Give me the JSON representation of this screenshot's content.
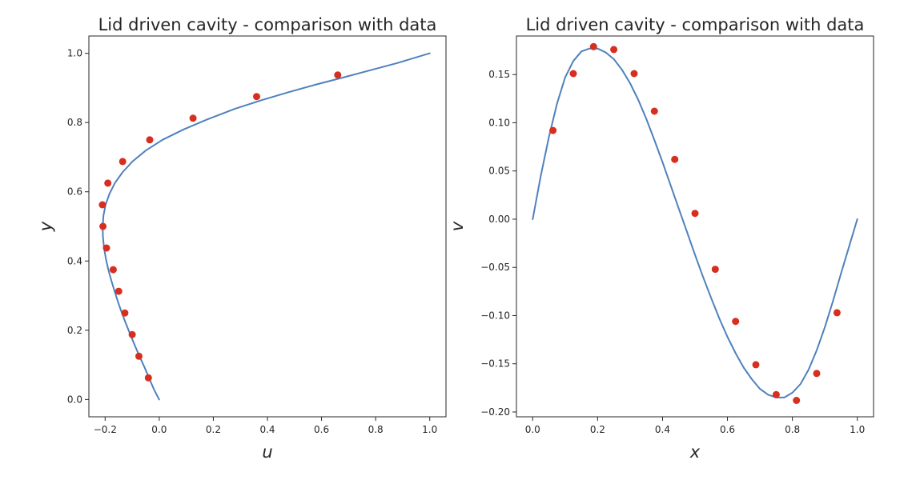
{
  "colors": {
    "line": "#4f81bd",
    "marker": "#d62f1f",
    "axes": "#262626"
  },
  "chart_data": [
    {
      "type": "line",
      "title": "Lid driven cavity - comparison with data",
      "xlabel": "u",
      "ylabel": "y",
      "xlim": [
        -0.26,
        1.06
      ],
      "ylim": [
        -0.05,
        1.05
      ],
      "xticks": [
        -0.2,
        0.0,
        0.2,
        0.4,
        0.6,
        0.8,
        1.0
      ],
      "xtick_labels": [
        "−0.2",
        "0.0",
        "0.2",
        "0.4",
        "0.6",
        "0.8",
        "1.0"
      ],
      "yticks": [
        0.0,
        0.2,
        0.4,
        0.6,
        0.8,
        1.0
      ],
      "ytick_labels": [
        "0.0",
        "0.2",
        "0.4",
        "0.6",
        "0.8",
        "1.0"
      ],
      "grid": false,
      "series": [
        {
          "kind": "line",
          "x": [
            0.0,
            -0.02,
            -0.038,
            -0.055,
            -0.073,
            -0.09,
            -0.107,
            -0.123,
            -0.138,
            -0.152,
            -0.165,
            -0.177,
            -0.188,
            -0.197,
            -0.204,
            -0.208,
            -0.209,
            -0.206,
            -0.198,
            -0.184,
            -0.164,
            -0.136,
            -0.098,
            -0.05,
            0.012,
            0.09,
            0.18,
            0.28,
            0.38,
            0.48,
            0.58,
            0.68,
            0.78,
            0.88,
            1.0
          ],
          "y": [
            0.0,
            0.03,
            0.063,
            0.094,
            0.125,
            0.156,
            0.188,
            0.219,
            0.25,
            0.281,
            0.313,
            0.344,
            0.375,
            0.406,
            0.438,
            0.469,
            0.5,
            0.531,
            0.563,
            0.594,
            0.625,
            0.656,
            0.688,
            0.719,
            0.75,
            0.78,
            0.81,
            0.84,
            0.865,
            0.888,
            0.91,
            0.93,
            0.951,
            0.972,
            1.0
          ]
        },
        {
          "kind": "scatter",
          "x": [
            -0.04,
            -0.075,
            -0.1,
            -0.127,
            -0.15,
            -0.17,
            -0.195,
            -0.208,
            -0.21,
            -0.19,
            -0.135,
            -0.035,
            0.125,
            0.36,
            0.66
          ],
          "y": [
            0.0625,
            0.125,
            0.1875,
            0.25,
            0.3125,
            0.375,
            0.4375,
            0.5,
            0.5625,
            0.625,
            0.6875,
            0.75,
            0.8125,
            0.875,
            0.9375
          ]
        }
      ]
    },
    {
      "type": "line",
      "title": "Lid driven cavity - comparison with data",
      "xlabel": "x",
      "ylabel": "v",
      "xlim": [
        -0.05,
        1.05
      ],
      "ylim": [
        -0.205,
        0.19
      ],
      "xticks": [
        0.0,
        0.2,
        0.4,
        0.6,
        0.8,
        1.0
      ],
      "xtick_labels": [
        "0.0",
        "0.2",
        "0.4",
        "0.6",
        "0.8",
        "1.0"
      ],
      "yticks": [
        -0.2,
        -0.15,
        -0.1,
        -0.05,
        0.0,
        0.05,
        0.1,
        0.15
      ],
      "ytick_labels": [
        "−0.20",
        "−0.15",
        "−0.10",
        "−0.05",
        "0.00",
        "0.05",
        "0.10",
        "0.15"
      ],
      "grid": false,
      "series": [
        {
          "kind": "line",
          "x": [
            0.0,
            0.025,
            0.05,
            0.075,
            0.1,
            0.125,
            0.15,
            0.175,
            0.2,
            0.225,
            0.25,
            0.275,
            0.3,
            0.325,
            0.35,
            0.375,
            0.4,
            0.425,
            0.45,
            0.475,
            0.5,
            0.525,
            0.55,
            0.575,
            0.6,
            0.625,
            0.65,
            0.675,
            0.7,
            0.725,
            0.75,
            0.775,
            0.8,
            0.825,
            0.85,
            0.875,
            0.9,
            0.925,
            0.95,
            0.975,
            1.0
          ],
          "y": [
            0.0,
            0.045,
            0.085,
            0.12,
            0.147,
            0.164,
            0.174,
            0.177,
            0.177,
            0.173,
            0.166,
            0.155,
            0.141,
            0.124,
            0.104,
            0.082,
            0.059,
            0.035,
            0.011,
            -0.013,
            -0.037,
            -0.06,
            -0.082,
            -0.103,
            -0.122,
            -0.139,
            -0.154,
            -0.166,
            -0.176,
            -0.182,
            -0.185,
            -0.185,
            -0.18,
            -0.171,
            -0.156,
            -0.136,
            -0.112,
            -0.085,
            -0.056,
            -0.028,
            0.0
          ]
        },
        {
          "kind": "scatter",
          "x": [
            0.0625,
            0.125,
            0.1875,
            0.25,
            0.3125,
            0.375,
            0.4375,
            0.5,
            0.5625,
            0.625,
            0.6875,
            0.75,
            0.8125,
            0.875,
            0.9375
          ],
          "y": [
            0.092,
            0.151,
            0.179,
            0.176,
            0.151,
            0.112,
            0.062,
            0.006,
            -0.052,
            -0.106,
            -0.151,
            -0.182,
            -0.188,
            -0.16,
            -0.097
          ]
        }
      ]
    }
  ]
}
